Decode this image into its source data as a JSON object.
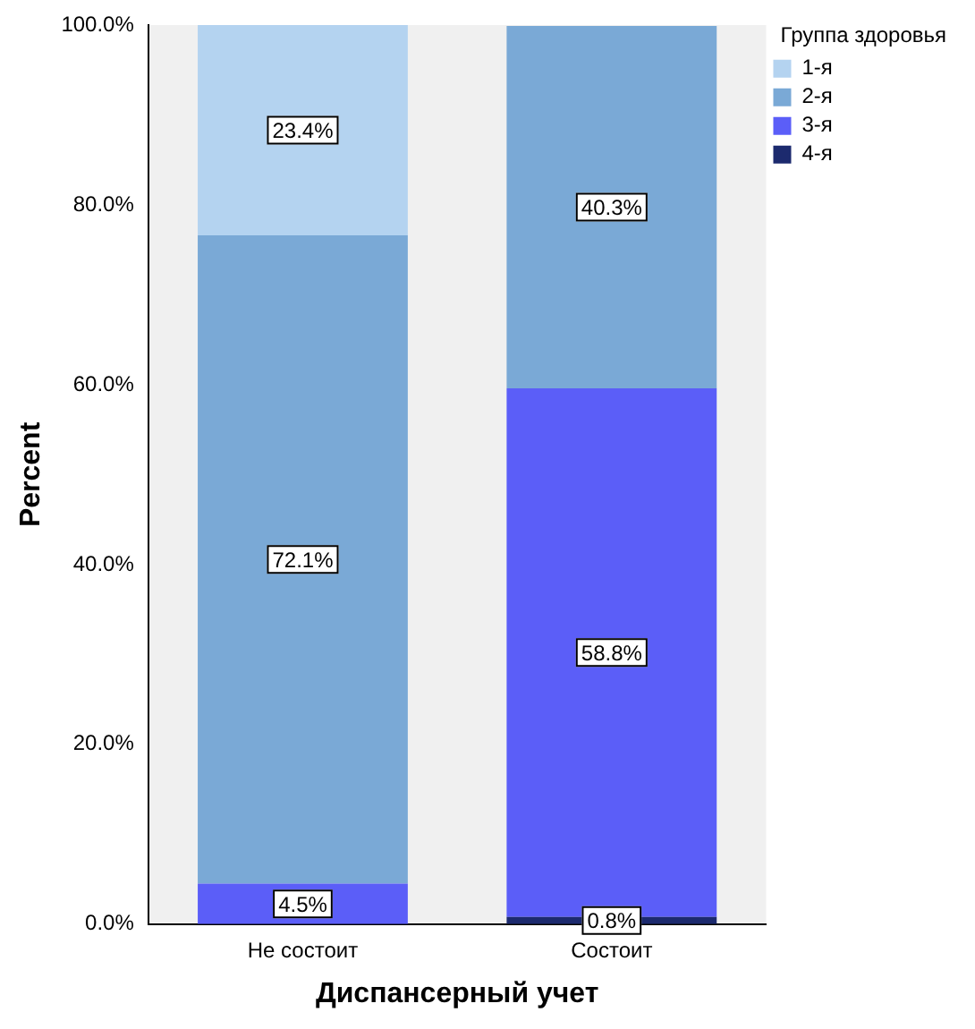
{
  "chart_data": {
    "type": "bar",
    "stacked": true,
    "xlabel": "Диспансерный учет",
    "ylabel": "Percent",
    "legend_title": "Группа здоровья",
    "legend": "top right",
    "grid": false,
    "categories": [
      "Не состоит",
      "Состоит"
    ],
    "series": [
      {
        "name": "4-я",
        "color": "#1c2a6e",
        "values": [
          null,
          0.8
        ],
        "value_labels": [
          null,
          "0.8%"
        ]
      },
      {
        "name": "3-я",
        "color": "#5b5ef8",
        "values": [
          4.5,
          58.8
        ],
        "value_labels": [
          "4.5%",
          "58.8%"
        ]
      },
      {
        "name": "2-я",
        "color": "#7aa9d6",
        "values": [
          72.1,
          40.3
        ],
        "value_labels": [
          "72.1%",
          "40.3%"
        ]
      },
      {
        "name": "1-я",
        "color": "#b4d3f0",
        "values": [
          23.4,
          null
        ],
        "value_labels": [
          "23.4%",
          null
        ]
      }
    ],
    "ylim": [
      0,
      100
    ],
    "yticks": [
      {
        "value": 0,
        "label": "0.0%"
      },
      {
        "value": 20,
        "label": "20.0%"
      },
      {
        "value": 40,
        "label": "40.0%"
      },
      {
        "value": 60,
        "label": "60.0%"
      },
      {
        "value": 80,
        "label": "80.0%"
      },
      {
        "value": 100,
        "label": "100.0%"
      }
    ]
  }
}
